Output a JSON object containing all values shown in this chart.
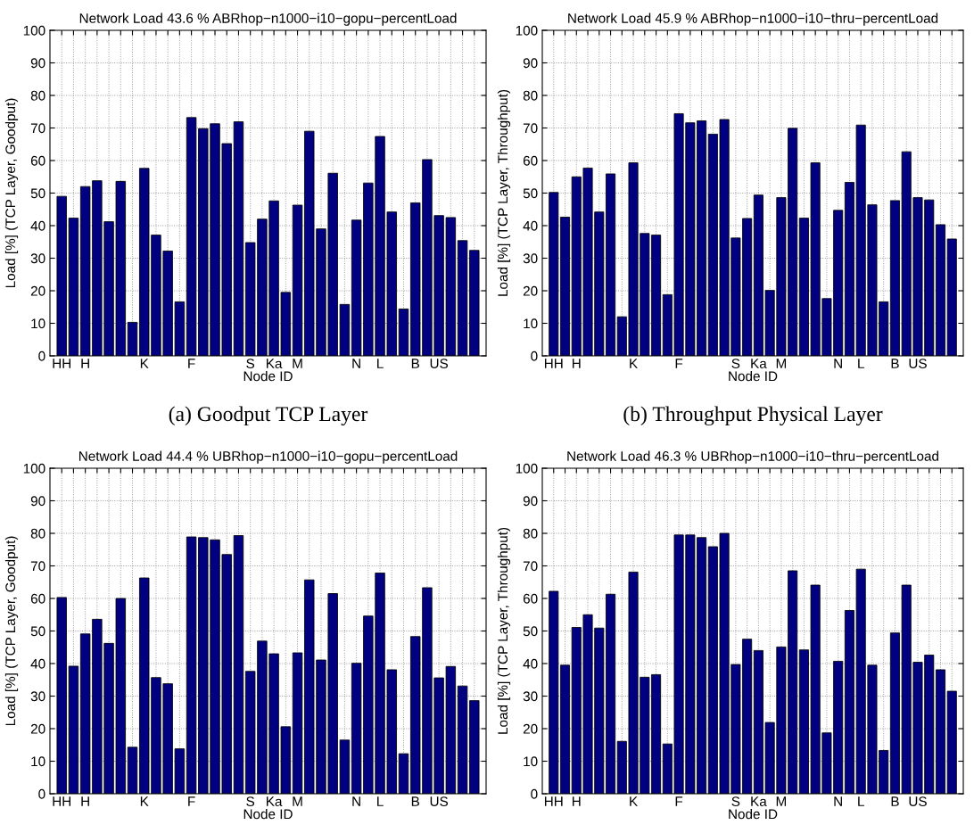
{
  "chart_data": [
    {
      "type": "bar",
      "title": "Network Load 43.6 % ABRhop−n1000−i10−gopu−percentLoad",
      "xlabel": "Node ID",
      "ylabel": "Load [%] (TCP Layer, Goodput)",
      "categories": [
        "HH",
        null,
        "H",
        null,
        null,
        null,
        null,
        "K",
        null,
        null,
        null,
        "F",
        null,
        null,
        null,
        null,
        "S",
        null,
        "Ka",
        null,
        "M",
        null,
        null,
        null,
        null,
        "N",
        null,
        "L",
        null,
        null,
        "B",
        null,
        "US",
        null,
        null,
        null
      ],
      "values": [
        49,
        42.3,
        52,
        53.8,
        41.2,
        53.6,
        10.3,
        57.6,
        37.1,
        32.2,
        16.6,
        73.2,
        69.8,
        71.3,
        65.2,
        71.9,
        34.8,
        42,
        47.6,
        19.5,
        46.3,
        69,
        39,
        56.1,
        15.8,
        41.7,
        53.1,
        67.4,
        44.2,
        14.4,
        47,
        60.3,
        43.1,
        42.5,
        35.4,
        32.4
      ],
      "color": "#000080",
      "ylim": [
        0,
        100
      ],
      "yticks": [
        0,
        10,
        20,
        30,
        40,
        50,
        60,
        70,
        80,
        90,
        100
      ],
      "grid": true,
      "annotations": [
        "(a) Goodput TCP Layer"
      ]
    },
    {
      "type": "bar",
      "title": "Network Load 45.9 % ABRhop−n1000−i10−thru−percentLoad",
      "xlabel": "Node ID",
      "ylabel": "Load [%] (TCP Layer, Throughput)",
      "categories": [
        "HH",
        null,
        "H",
        null,
        null,
        null,
        null,
        "K",
        null,
        null,
        null,
        "F",
        null,
        null,
        null,
        null,
        "S",
        null,
        "Ka",
        null,
        "M",
        null,
        null,
        null,
        null,
        "N",
        null,
        "L",
        null,
        null,
        "B",
        null,
        "US",
        null,
        null,
        null
      ],
      "values": [
        50.2,
        42.6,
        55,
        57.7,
        44.2,
        55.9,
        12,
        59.3,
        37.6,
        37.1,
        18.8,
        74.4,
        71.6,
        72.2,
        68.1,
        72.6,
        36.2,
        42.2,
        49.4,
        20.1,
        48.6,
        69.9,
        42.3,
        59.3,
        17.6,
        44.7,
        53.3,
        70.9,
        46.4,
        16.6,
        47.7,
        62.7,
        48.6,
        47.9,
        40.3,
        35.9
      ],
      "color": "#000080",
      "ylim": [
        0,
        100
      ],
      "yticks": [
        0,
        10,
        20,
        30,
        40,
        50,
        60,
        70,
        80,
        90,
        100
      ],
      "grid": true,
      "annotations": [
        "(b) Throughput Physical Layer"
      ]
    },
    {
      "type": "bar",
      "title": "Network Load 44.4 % UBRhop−n1000−i10−gopu−percentLoad",
      "xlabel": "Node ID",
      "ylabel": "Load [%] (TCP Layer, Goodput)",
      "categories": [
        "HH",
        null,
        "H",
        null,
        null,
        null,
        null,
        "K",
        null,
        null,
        null,
        "F",
        null,
        null,
        null,
        null,
        "S",
        null,
        "Ka",
        null,
        "M",
        null,
        null,
        null,
        null,
        "N",
        null,
        "L",
        null,
        null,
        "B",
        null,
        "US",
        null,
        null,
        null
      ],
      "values": [
        60.3,
        39.2,
        49.1,
        53.6,
        46.2,
        60,
        14.3,
        66.3,
        35.7,
        33.8,
        13.8,
        78.9,
        78.7,
        78,
        73.5,
        79.3,
        37.6,
        46.9,
        43,
        20.6,
        43.3,
        65.7,
        41.1,
        61.5,
        16.5,
        40.1,
        54.6,
        67.8,
        38.1,
        12.3,
        48.3,
        63.3,
        35.6,
        39.1,
        33.1,
        28.6
      ],
      "color": "#000080",
      "ylim": [
        0,
        100
      ],
      "yticks": [
        0,
        10,
        20,
        30,
        40,
        50,
        60,
        70,
        80,
        90,
        100
      ],
      "grid": true
    },
    {
      "type": "bar",
      "title": "Network Load 46.3 % UBRhop−n1000−i10−thru−percentLoad",
      "xlabel": "Node ID",
      "ylabel": "Load [%] (TCP Layer, Throughput)",
      "categories": [
        "HH",
        null,
        "H",
        null,
        null,
        null,
        null,
        "K",
        null,
        null,
        null,
        "F",
        null,
        null,
        null,
        null,
        "S",
        null,
        "Ka",
        null,
        "M",
        null,
        null,
        null,
        null,
        "N",
        null,
        "L",
        null,
        null,
        "B",
        null,
        "US",
        null,
        null,
        null
      ],
      "values": [
        62.2,
        39.5,
        51.1,
        55,
        50.9,
        61.3,
        16.1,
        68.1,
        35.8,
        36.6,
        15.3,
        79.5,
        79.5,
        78.7,
        75.9,
        80,
        39.7,
        47.5,
        44,
        21.9,
        45.1,
        68.5,
        44.2,
        64.1,
        18.7,
        40.7,
        56.3,
        69,
        39.5,
        13.3,
        49.4,
        64.1,
        40.4,
        42.6,
        38.1,
        31.5
      ],
      "color": "#000080",
      "ylim": [
        0,
        100
      ],
      "yticks": [
        0,
        10,
        20,
        30,
        40,
        50,
        60,
        70,
        80,
        90,
        100
      ],
      "grid": true
    }
  ]
}
